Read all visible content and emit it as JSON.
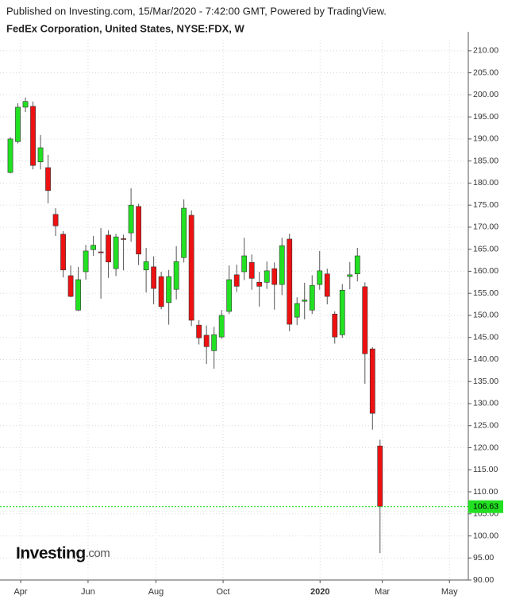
{
  "chart_data": {
    "type": "candlestick",
    "header": "Published on Investing.com, 15/Mar/2020 - 7:42:00 GMT, Powered by TradingView.",
    "title": "FedEx Corporation, United States, NYSE:FDX, W",
    "logo": "Investing",
    "logo_suffix": ".com",
    "x": [
      0,
      1,
      2,
      3,
      4,
      5,
      6,
      7,
      8,
      9,
      10,
      11,
      12,
      13,
      14,
      15,
      16,
      17,
      18,
      19,
      20,
      21,
      22,
      23,
      24,
      25,
      26,
      27,
      28,
      29,
      30,
      31,
      32,
      33,
      34,
      35,
      36,
      37,
      38,
      39,
      40,
      41,
      42,
      43,
      44,
      45,
      46,
      47,
      48,
      49
    ],
    "open": [
      182.4,
      189.4,
      197.2,
      197.4,
      184.8,
      183.5,
      172.9,
      168.4,
      159.0,
      151.2,
      159.9,
      164.9,
      164.4,
      168.2,
      160.6,
      167.4,
      168.7,
      174.7,
      160.3,
      161.0,
      158.8,
      152.9,
      155.9,
      163.1,
      172.7,
      147.8,
      145.5,
      142.0,
      145.1,
      150.9,
      159.2,
      159.9,
      162.0,
      157.5,
      157.5,
      160.6,
      157.0,
      167.3,
      149.6,
      153.2,
      151.2,
      157.0,
      159.4,
      150.3,
      145.6,
      158.8,
      159.4,
      156.5,
      142.4,
      120.4
    ],
    "high": [
      190.4,
      198.1,
      199.4,
      198.5,
      190.9,
      186.4,
      174.3,
      169.1,
      161.3,
      161.0,
      166.0,
      168.0,
      169.8,
      169.3,
      168.5,
      168.3,
      178.8,
      175.3,
      165.3,
      163.4,
      159.9,
      160.3,
      165.7,
      176.3,
      173.8,
      148.9,
      147.7,
      147.4,
      151.2,
      161.3,
      161.5,
      167.6,
      163.8,
      159.9,
      162.2,
      162.0,
      167.6,
      168.5,
      154.1,
      157.4,
      159.1,
      164.6,
      160.6,
      150.9,
      157.1,
      162.1,
      165.3,
      157.5,
      142.8,
      121.8
    ],
    "low": [
      182.2,
      189.0,
      196.1,
      183.1,
      183.1,
      175.4,
      168.0,
      158.6,
      154.1,
      151.0,
      158.1,
      163.5,
      153.8,
      158.5,
      158.9,
      160.2,
      166.7,
      161.4,
      155.2,
      152.5,
      151.4,
      147.9,
      153.6,
      162.0,
      147.6,
      143.4,
      139.0,
      137.9,
      144.7,
      150.3,
      155.3,
      158.0,
      155.8,
      152.0,
      156.0,
      151.3,
      154.6,
      146.4,
      147.8,
      149.1,
      150.3,
      155.8,
      152.5,
      143.6,
      144.9,
      155.9,
      157.7,
      134.5,
      124.1,
      96.1
    ],
    "close": [
      190.0,
      197.2,
      198.5,
      184.0,
      188.0,
      178.3,
      170.3,
      160.3,
      154.3,
      158.1,
      164.6,
      165.9,
      164.2,
      162.1,
      167.8,
      167.2,
      175.0,
      163.9,
      162.2,
      156.1,
      152.0,
      158.8,
      162.2,
      174.3,
      148.9,
      144.9,
      142.9,
      145.6,
      150.0,
      158.1,
      156.6,
      163.5,
      158.4,
      156.6,
      160.1,
      157.0,
      165.8,
      148.0,
      152.7,
      153.5,
      156.8,
      160.1,
      154.3,
      145.1,
      155.7,
      159.2,
      163.5,
      141.3,
      127.8,
      106.7
    ],
    "up_color": "#22e022",
    "down_color": "#ee1111",
    "last_price": 106.63,
    "last_price_color": "#22e022",
    "grid": true,
    "xlim": [
      -1.37,
      60.7
    ],
    "xticks": [
      {
        "value": 1.37,
        "label": "Apr"
      },
      {
        "value": 10.3,
        "label": "Jun"
      },
      {
        "value": 19.3,
        "label": "Aug"
      },
      {
        "value": 28.2,
        "label": "Oct"
      },
      {
        "value": 41.05,
        "label": "2020"
      },
      {
        "value": 49.3,
        "label": "Mar"
      },
      {
        "value": 58.2,
        "label": "May"
      }
    ],
    "ylim": [
      90,
      212.5
    ],
    "yticks": [
      {
        "value": 90,
        "label": "90.00"
      },
      {
        "value": 95,
        "label": "95.00"
      },
      {
        "value": 100,
        "label": "100.00"
      },
      {
        "value": 105,
        "label": "105.00"
      },
      {
        "value": 110,
        "label": "110.00"
      },
      {
        "value": 115,
        "label": "115.00"
      },
      {
        "value": 120,
        "label": "120.00"
      },
      {
        "value": 125,
        "label": "125.00"
      },
      {
        "value": 130,
        "label": "130.00"
      },
      {
        "value": 135,
        "label": "135.00"
      },
      {
        "value": 140,
        "label": "140.00"
      },
      {
        "value": 145,
        "label": "145.00"
      },
      {
        "value": 150,
        "label": "150.00"
      },
      {
        "value": 155,
        "label": "155.00"
      },
      {
        "value": 160,
        "label": "160.00"
      },
      {
        "value": 165,
        "label": "165.00"
      },
      {
        "value": 170,
        "label": "170.00"
      },
      {
        "value": 175,
        "label": "175.00"
      },
      {
        "value": 180,
        "label": "180.00"
      },
      {
        "value": 185,
        "label": "185.00"
      },
      {
        "value": 190,
        "label": "190.00"
      },
      {
        "value": 195,
        "label": "195.00"
      },
      {
        "value": 200,
        "label": "200.00"
      },
      {
        "value": 205,
        "label": "205.00"
      },
      {
        "value": 210,
        "label": "210.00"
      }
    ]
  }
}
